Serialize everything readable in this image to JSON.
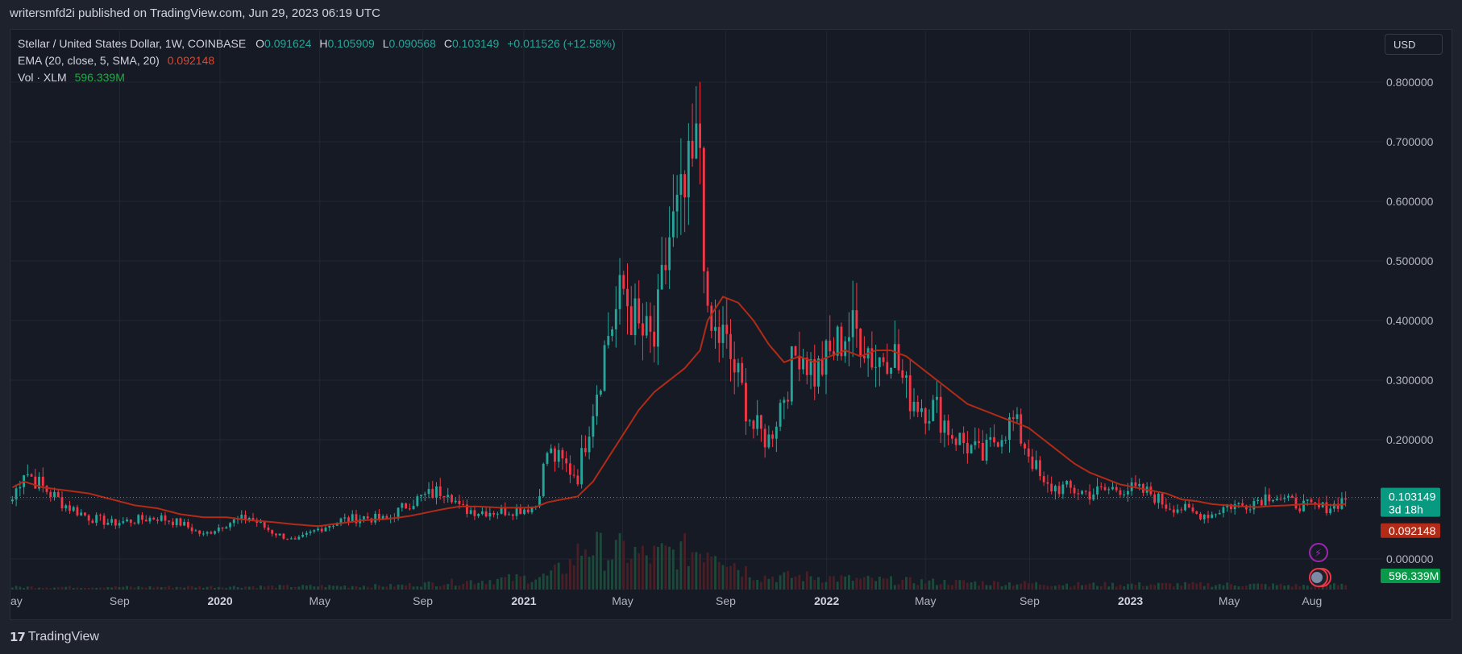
{
  "header": {
    "published_text": "writersmfd2i published on TradingView.com, Jun 29, 2023 06:19 UTC"
  },
  "legend": {
    "symbol": "Stellar / United States Dollar, 1W, COINBASE",
    "o_label": "O",
    "o_value": "0.091624",
    "h_label": "H",
    "h_value": "0.105909",
    "l_label": "L",
    "l_value": "0.090568",
    "c_label": "C",
    "c_value": "0.103149",
    "change": "+0.011526 (+12.58%)",
    "ema_label": "EMA (20, close, 5, SMA, 20)",
    "ema_value": "0.092148",
    "vol_label": "Vol · XLM",
    "vol_value": "596.339M"
  },
  "currency_button": "USD",
  "footer": {
    "brand": "TradingView"
  },
  "colors": {
    "up": "#26a69a",
    "down": "#f23645",
    "ema": "#b22b16",
    "vol_up": "#1c4a3a",
    "vol_down": "#4a1e25",
    "grid": "#232733"
  },
  "chart_data": {
    "type": "candlestick",
    "price_axis": {
      "ticks": [
        "0.800000",
        "0.700000",
        "0.600000",
        "0.500000",
        "0.400000",
        "0.300000",
        "0.200000",
        "0.100000",
        "0.000000"
      ],
      "ylim": [
        0.0,
        0.8
      ]
    },
    "x_axis": {
      "ticks": [
        {
          "label": "ay",
          "t": 0.0,
          "bold": false
        },
        {
          "label": "Sep",
          "t": 0.0812,
          "bold": false
        },
        {
          "label": "2020",
          "t": 0.156,
          "bold": true
        },
        {
          "label": "May",
          "t": 0.2302,
          "bold": false
        },
        {
          "label": "Sep",
          "t": 0.3069,
          "bold": false
        },
        {
          "label": "2021",
          "t": 0.3821,
          "bold": true
        },
        {
          "label": "May",
          "t": 0.4556,
          "bold": false
        },
        {
          "label": "Sep",
          "t": 0.5324,
          "bold": false
        },
        {
          "label": "2022",
          "t": 0.6075,
          "bold": true
        },
        {
          "label": "May",
          "t": 0.681,
          "bold": false
        },
        {
          "label": "Sep",
          "t": 0.7585,
          "bold": false
        },
        {
          "label": "2023",
          "t": 0.8336,
          "bold": true
        },
        {
          "label": "May",
          "t": 0.9071,
          "bold": false
        },
        {
          "label": "Aug",
          "t": 0.9687,
          "bold": false
        }
      ]
    },
    "price_tags": {
      "last_price": "0.103149",
      "last_price_value": 0.103149,
      "countdown": "3d 18h",
      "ema": "0.092148",
      "ema_value": 0.092148,
      "volume": "596.339M"
    },
    "anchors": [
      [
        0,
        0.1,
        0.12
      ],
      [
        3,
        0.15,
        0.13
      ],
      [
        8,
        0.12,
        0.12
      ],
      [
        14,
        0.09,
        0.115
      ],
      [
        20,
        0.07,
        0.11
      ],
      [
        26,
        0.06,
        0.1
      ],
      [
        32,
        0.065,
        0.09
      ],
      [
        38,
        0.07,
        0.085
      ],
      [
        44,
        0.06,
        0.075
      ],
      [
        50,
        0.04,
        0.07
      ],
      [
        56,
        0.06,
        0.07
      ],
      [
        62,
        0.07,
        0.065
      ],
      [
        68,
        0.045,
        0.062
      ],
      [
        74,
        0.03,
        0.058
      ],
      [
        80,
        0.05,
        0.055
      ],
      [
        86,
        0.065,
        0.06
      ],
      [
        92,
        0.07,
        0.065
      ],
      [
        98,
        0.065,
        0.067
      ],
      [
        104,
        0.095,
        0.072
      ],
      [
        110,
        0.11,
        0.08
      ],
      [
        114,
        0.12,
        0.085
      ],
      [
        117,
        0.085,
        0.088
      ],
      [
        122,
        0.08,
        0.088
      ],
      [
        128,
        0.08,
        0.086
      ],
      [
        134,
        0.085,
        0.086
      ],
      [
        137,
        0.09,
        0.087
      ],
      [
        140,
        0.18,
        0.095
      ],
      [
        144,
        0.16,
        0.1
      ],
      [
        148,
        0.14,
        0.105
      ],
      [
        152,
        0.26,
        0.13
      ],
      [
        156,
        0.38,
        0.17
      ],
      [
        160,
        0.45,
        0.21
      ],
      [
        164,
        0.38,
        0.25
      ],
      [
        168,
        0.36,
        0.28
      ],
      [
        172,
        0.54,
        0.3
      ],
      [
        176,
        0.6,
        0.32
      ],
      [
        180,
        0.7,
        0.35
      ],
      [
        182,
        0.38,
        0.4
      ],
      [
        186,
        0.37,
        0.44
      ],
      [
        190,
        0.3,
        0.43
      ],
      [
        194,
        0.22,
        0.4
      ],
      [
        198,
        0.2,
        0.36
      ],
      [
        202,
        0.28,
        0.33
      ],
      [
        206,
        0.36,
        0.34
      ],
      [
        210,
        0.31,
        0.33
      ],
      [
        214,
        0.34,
        0.34
      ],
      [
        218,
        0.38,
        0.35
      ],
      [
        222,
        0.38,
        0.34
      ],
      [
        226,
        0.33,
        0.35
      ],
      [
        230,
        0.36,
        0.35
      ],
      [
        234,
        0.28,
        0.34
      ],
      [
        238,
        0.26,
        0.32
      ],
      [
        242,
        0.25,
        0.3
      ],
      [
        246,
        0.21,
        0.28
      ],
      [
        250,
        0.19,
        0.26
      ],
      [
        254,
        0.17,
        0.25
      ],
      [
        258,
        0.21,
        0.24
      ],
      [
        262,
        0.23,
        0.23
      ],
      [
        266,
        0.18,
        0.22
      ],
      [
        270,
        0.12,
        0.2
      ],
      [
        274,
        0.12,
        0.18
      ],
      [
        278,
        0.115,
        0.16
      ],
      [
        282,
        0.11,
        0.145
      ],
      [
        286,
        0.115,
        0.135
      ],
      [
        290,
        0.12,
        0.125
      ],
      [
        294,
        0.115,
        0.12
      ],
      [
        298,
        0.11,
        0.115
      ],
      [
        302,
        0.09,
        0.11
      ],
      [
        306,
        0.085,
        0.1
      ],
      [
        310,
        0.075,
        0.097
      ],
      [
        314,
        0.075,
        0.092
      ],
      [
        318,
        0.09,
        0.09
      ],
      [
        322,
        0.09,
        0.088
      ],
      [
        326,
        0.1,
        0.087
      ],
      [
        330,
        0.11,
        0.089
      ],
      [
        334,
        0.095,
        0.09
      ],
      [
        338,
        0.09,
        0.092
      ],
      [
        342,
        0.085,
        0.092
      ],
      [
        346,
        0.09,
        0.09
      ],
      [
        349,
        0.103,
        0.092
      ]
    ],
    "volumes": [
      [
        0,
        0.02
      ],
      [
        40,
        0.02
      ],
      [
        100,
        0.03
      ],
      [
        140,
        0.1
      ],
      [
        146,
        0.2
      ],
      [
        150,
        0.35
      ],
      [
        156,
        0.28
      ],
      [
        160,
        0.3
      ],
      [
        166,
        0.25
      ],
      [
        172,
        0.28
      ],
      [
        178,
        0.3
      ],
      [
        184,
        0.35
      ],
      [
        190,
        0.18
      ],
      [
        196,
        0.1
      ],
      [
        210,
        0.1
      ],
      [
        220,
        0.08
      ],
      [
        240,
        0.06
      ],
      [
        260,
        0.05
      ],
      [
        280,
        0.04
      ],
      [
        300,
        0.04
      ],
      [
        320,
        0.04
      ],
      [
        340,
        0.03
      ],
      [
        349,
        0.05
      ]
    ]
  }
}
